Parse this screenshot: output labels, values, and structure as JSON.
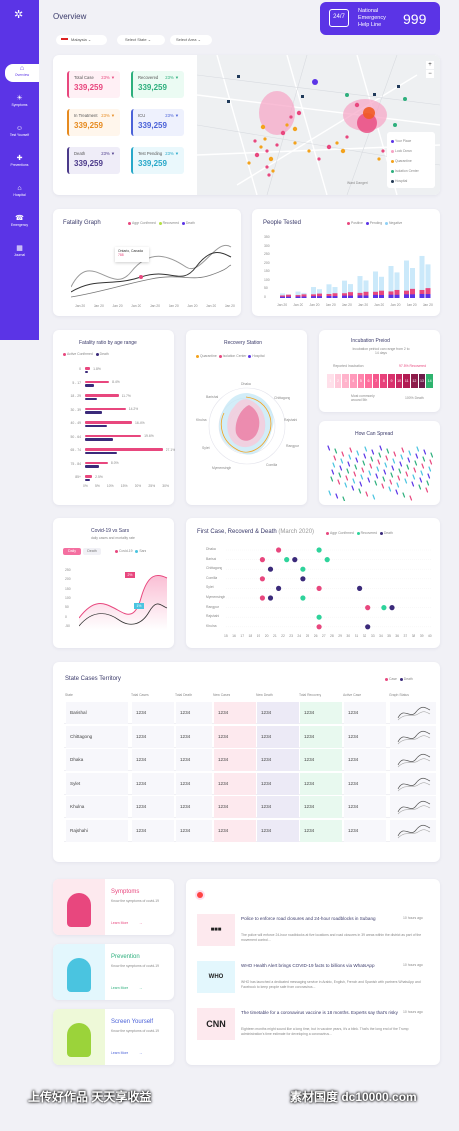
{
  "header": {
    "title": "Overview",
    "helpline": {
      "l1": "National",
      "l2": "Emergency",
      "l3": "Help Line",
      "number": "999"
    }
  },
  "filters": [
    {
      "value": "Malaysia"
    },
    {
      "value": "Select State"
    },
    {
      "value": "Select Area"
    }
  ],
  "sidebar": {
    "items": [
      {
        "label": "Overview"
      },
      {
        "label": "Symptoms"
      },
      {
        "label": "Test Yourself"
      },
      {
        "label": "Preventions"
      },
      {
        "label": "Hospital"
      },
      {
        "label": "Emergency"
      },
      {
        "label": "Journal"
      }
    ]
  },
  "stats": [
    {
      "label": "Total Case",
      "change": "23% ▼",
      "value": "339,259",
      "color": "#e8477e",
      "bg": "#fff0f5"
    },
    {
      "label": "Recovered",
      "change": "23% ▼",
      "value": "339,259",
      "color": "#2eaf7d",
      "bg": "#ebfbf3"
    },
    {
      "label": "In Treatment",
      "change": "23% ▼",
      "value": "339,259",
      "color": "#e68a1f",
      "bg": "#fff6ec"
    },
    {
      "label": "ICU",
      "change": "23% ▼",
      "value": "339,259",
      "color": "#4b62d8",
      "bg": "#eef1fd"
    },
    {
      "label": "Death",
      "change": "23% ▼",
      "value": "339,259",
      "color": "#4b3a8a",
      "bg": "#efedf8"
    },
    {
      "label": "Test Pending",
      "change": "23% ▼",
      "value": "339,259",
      "color": "#27a8c9",
      "bg": "#eaf8fc"
    }
  ],
  "map": {
    "legend": [
      "Your Place",
      "Lock Down",
      "Quarantine",
      "Isolation Center",
      "Hospital"
    ],
    "footer": "Ward Dangerl",
    "zoom_in": "+",
    "zoom_out": "−"
  },
  "fatality_graph": {
    "title": "Fatality Graph",
    "legend": [
      "Aggr Confirmed",
      "Recovered",
      "Death"
    ],
    "tooltip": {
      "l1": "Ontario, Canada",
      "l2": "788"
    },
    "xticks": [
      "Jan 20",
      "Jan 20",
      "Jan 20",
      "Jan 20",
      "Jan 20",
      "Jan 20",
      "Jan 20",
      "Jan 20",
      "Jan 20"
    ]
  },
  "people_tested": {
    "title": "People Tested",
    "legend": [
      "Positive",
      "Pending",
      "Negative"
    ],
    "yticks": [
      "350",
      "300",
      "250",
      "200",
      "150",
      "100",
      "50",
      "0"
    ],
    "xticks": [
      "Jan 20",
      "Jan 20",
      "Jan 20",
      "Jan 20",
      "Jan 20",
      "Jan 20",
      "Jan 20",
      "Jan 20",
      "Jan 20",
      "Jan 20"
    ]
  },
  "chart_data": [
    {
      "type": "bar",
      "title": "People Tested",
      "categories": [
        "Jan 20",
        "Jan 20",
        "Jan 20",
        "Jan 20",
        "Jan 20",
        "Jan 20",
        "Jan 20",
        "Jan 20",
        "Jan 20",
        "Jan 20"
      ],
      "series": [
        {
          "name": "Positive",
          "values": [
            18,
            20,
            24,
            26,
            32,
            34,
            40,
            44,
            50,
            54
          ]
        },
        {
          "name": "Pending",
          "values": [
            14,
            16,
            20,
            22,
            26,
            28,
            34,
            36,
            40,
            44
          ]
        },
        {
          "name": "Negative",
          "values": [
            25,
            35,
            60,
            75,
            95,
            120,
            145,
            175,
            205,
            230
          ]
        }
      ],
      "ylim": [
        0,
        350
      ]
    },
    {
      "type": "bar",
      "title": "Fatality ratio by age range",
      "categories": [
        "0",
        "5-17",
        "18-29",
        "30-39",
        "40-49",
        "50-64",
        "65-74",
        "75-84",
        "85+"
      ],
      "series": [
        {
          "name": "Active Confirmed",
          "values": [
            1.8,
            8.4,
            11.7,
            14.2,
            16.4,
            19.6,
            27.1,
            8.0,
            2.5
          ]
        },
        {
          "name": "Death",
          "values": [
            1.1,
            3.0,
            4.2,
            6.0,
            7.5,
            9.8,
            11.0,
            5.0,
            1.6
          ]
        }
      ],
      "ylim": [
        0,
        30
      ]
    },
    {
      "type": "scatter",
      "title": "First Case, Recoverd & Death",
      "categories": [
        "Dhaka",
        "Barisal",
        "Chittagong",
        "Comilla",
        "Sylet",
        "Mymensingh",
        "Rangpur",
        "Rajshahi",
        "Khulna"
      ],
      "xlim": [
        15,
        40
      ]
    }
  ],
  "age_chart": {
    "title": "Fatality ratio by age range",
    "legend": [
      "Active Confirmed",
      "Death"
    ],
    "categories": [
      "0",
      "5 - 17",
      "18 - 29",
      "30 - 39",
      "40 - 49",
      "50 - 64",
      "65 - 74",
      "75 - 84",
      "85+"
    ],
    "labels": [
      "1.8%",
      "8.4%",
      "11.7%",
      "14.2%",
      "16.4%",
      "19.6%",
      "27.1%",
      "8.0%",
      "2.5%"
    ],
    "xticks": [
      "0%",
      "5%",
      "10%",
      "15%",
      "20%",
      "25%",
      "30%"
    ]
  },
  "recovery": {
    "title": "Recovery Station",
    "legend": [
      "Quarantine",
      "Isolation Center",
      "Hospital"
    ],
    "axes": [
      "Dhaka",
      "Chittagong",
      "Rajshahi",
      "Rangpur",
      "Comilla",
      "Mymensingh",
      "Sylet",
      "Khulna",
      "Barishal"
    ]
  },
  "incubation": {
    "title": "Incubation Preiod",
    "sub": "Incubation peiriod can range from 2 to 14 days",
    "legend1": "Reported Incubation",
    "pct": "97.5% Recovered",
    "f1": "Most commonly around 5th",
    "f2": "100% Death",
    "days": [
      "1",
      "2",
      "3",
      "4",
      "5",
      "6",
      "7",
      "8",
      "9",
      "10",
      "11",
      "12",
      "13",
      "14"
    ],
    "colors": [
      "#ffe0ea",
      "#ffc9da",
      "#ffb3cb",
      "#ff9abb",
      "#ff84ac",
      "#ff6d9c",
      "#f5578c",
      "#e8427b",
      "#d9326d",
      "#c82560",
      "#b21b52",
      "#8d1c4a",
      "#6d1b4a",
      "#2eb36e"
    ]
  },
  "spread": {
    "title": "How Can Spread"
  },
  "covid_sars": {
    "title": "Covid-19 vs Sars",
    "sub": "daily cases and mortality rate",
    "tab1": "Daily",
    "tab2": "Death",
    "legend": [
      "Covid-19",
      "Sars"
    ],
    "yticks": [
      "250",
      "200",
      "150",
      "100",
      "50",
      "0",
      "-50"
    ],
    "tip1": "2%",
    "tip2": "1%"
  },
  "scatter": {
    "title": "First Case, Recoverd & Death",
    "sub": "(March 2020)",
    "legend": [
      "Aggr Confirmed",
      "Recovered",
      "Death"
    ],
    "rows": [
      "Dhaka",
      "Barisal",
      "Chittagong",
      "Comilla",
      "Sylet",
      "Mymensingh",
      "Rangpur",
      "Rajshahi",
      "Khulna"
    ],
    "xticks": [
      "15",
      "16",
      "17",
      "18",
      "19",
      "20",
      "21",
      "22",
      "23",
      "24",
      "25",
      "26",
      "27",
      "28",
      "29",
      "30",
      "31",
      "32",
      "33",
      "34",
      "35",
      "36",
      "37",
      "38",
      "39",
      "40"
    ]
  },
  "table": {
    "title": "State Cases Territory",
    "legend": [
      "Case",
      "Death"
    ],
    "headers": [
      "State",
      "Total Cases",
      "Total Death",
      "New Cases",
      "New Death",
      "Total Recovery",
      "Active Case",
      "Graph Status"
    ],
    "rows": [
      {
        "state": "Barishal",
        "c1": "1234",
        "c2": "1234",
        "c3": "1234",
        "c4": "1234",
        "c5": "1234",
        "c6": "1234"
      },
      {
        "state": "Chittagong",
        "c1": "1234",
        "c2": "1234",
        "c3": "1234",
        "c4": "1234",
        "c5": "1234",
        "c6": "1234"
      },
      {
        "state": "Dhaka",
        "c1": "1234",
        "c2": "1234",
        "c3": "1234",
        "c4": "1234",
        "c5": "1234",
        "c6": "1234"
      },
      {
        "state": "Sylet",
        "c1": "1234",
        "c2": "1234",
        "c3": "1234",
        "c4": "1234",
        "c5": "1234",
        "c6": "1234"
      },
      {
        "state": "Khulna",
        "c1": "1234",
        "c2": "1234",
        "c3": "1234",
        "c4": "1234",
        "c5": "1234",
        "c6": "1234"
      },
      {
        "state": "Rajshahi",
        "c1": "1234",
        "c2": "1234",
        "c3": "1234",
        "c4": "1234",
        "c5": "1234",
        "c6": "1234"
      }
    ]
  },
  "info": [
    {
      "title": "Symptoms",
      "text": "Know the symptoms of covid-19",
      "link": "Learn More",
      "color": "#e8477e"
    },
    {
      "title": "Prevention",
      "text": "Know the symptoms of covid-19",
      "link": "Learn More",
      "color": "#2eaf7d"
    },
    {
      "title": "Screen Yourself",
      "text": "Know the symptoms of covid-19",
      "link": "Learn More",
      "color": "#4b62d8"
    }
  ],
  "news": [
    {
      "logo": "■■■",
      "title": "Police to enforce road closures and 24-hour roadblocks in Subang",
      "time": "10 hours ago",
      "text": "The police will enforce 24-hour roadblocks at five locations and road closures in 39 areas within the district as part of the movement control..."
    },
    {
      "logo": "WHO",
      "title": "WHO Health Alert brings COVID-19 facts to billions via WhatsApp",
      "time": "10 hours ago",
      "text": "WHO has launched a dedicated messaging service in Arabic, English, French and Spanish with partners WhatsApp and Facebook to keep people safe from coronavirus..."
    },
    {
      "logo": "CNN",
      "title": "The timetable for a coronavirus vaccine is 18 months. Experts say that's risky",
      "time": "10 hours ago",
      "text": "Eighteen months might sound like a long time, but in vaccine years, it's a blink. That's the long end of the Trump administration's time estimate for developing a coronavirus..."
    }
  ],
  "watermark": {
    "left": "上传好作品 天天享收益",
    "right": "素材国度 dc10000.com"
  }
}
